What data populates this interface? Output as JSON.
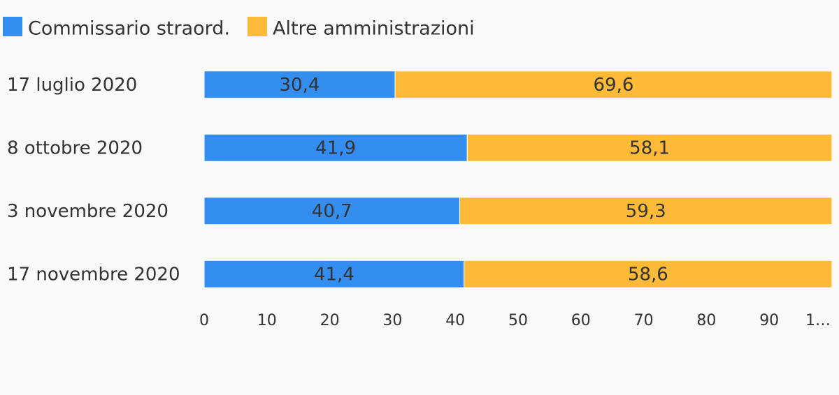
{
  "chart_data": {
    "type": "bar",
    "orientation": "horizontal",
    "stacked": true,
    "categories": [
      "17 luglio 2020",
      "8 ottobre 2020",
      "3 novembre 2020",
      "17 novembre 2020"
    ],
    "series": [
      {
        "name": "Commissario straord.",
        "color": "#348ef0",
        "values": [
          30.4,
          41.9,
          40.7,
          41.4
        ],
        "value_labels": [
          "30,4",
          "41,9",
          "40,7",
          "41,4"
        ]
      },
      {
        "name": "Altre amministrazioni",
        "color": "#ffba38",
        "values": [
          69.6,
          58.1,
          59.3,
          58.6
        ],
        "value_labels": [
          "69,6",
          "58,1",
          "59,3",
          "58,6"
        ]
      }
    ],
    "xlim": [
      0,
      100
    ],
    "xticks": [
      0,
      10,
      20,
      30,
      40,
      50,
      60,
      70,
      80,
      90,
      {
        "value": 100,
        "label": "1…"
      }
    ],
    "legend": "top-left",
    "grid": false
  }
}
